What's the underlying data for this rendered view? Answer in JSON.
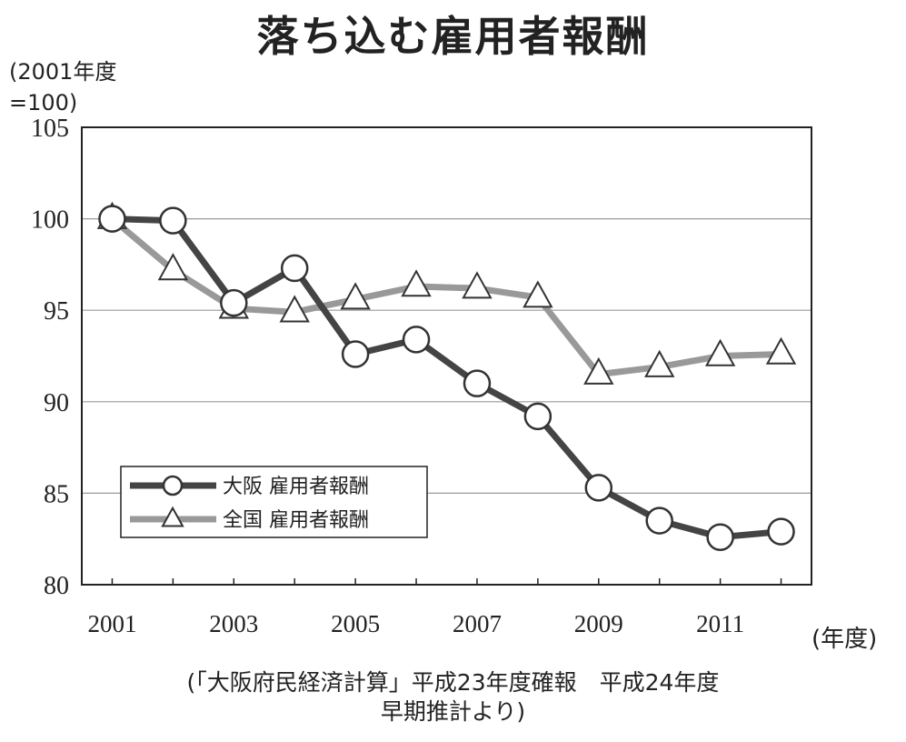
{
  "title": "落ち込む雇用者報酬",
  "chart_data": {
    "type": "line",
    "title": "落ち込む雇用者報酬",
    "ylabel": "(2001年度\n=100)",
    "xlabel": "(年度)",
    "ylim": [
      80,
      105
    ],
    "yticks": [
      80,
      85,
      90,
      95,
      100,
      105
    ],
    "x": [
      2001,
      2002,
      2003,
      2004,
      2005,
      2006,
      2007,
      2008,
      2009,
      2010,
      2011,
      2012
    ],
    "xticks": [
      2001,
      2003,
      2005,
      2007,
      2009,
      2011
    ],
    "grid": "horizontal",
    "legend_position": "lower-left",
    "series": [
      {
        "name": "大阪 雇用者報酬",
        "marker": "circle",
        "color": "#444444",
        "values": [
          100.0,
          99.9,
          95.4,
          97.3,
          92.6,
          93.4,
          91.0,
          89.2,
          85.3,
          83.5,
          82.6,
          82.9
        ]
      },
      {
        "name": "全国 雇用者報酬",
        "marker": "triangle",
        "color": "#999999",
        "values": [
          100.0,
          97.2,
          95.1,
          94.9,
          95.6,
          96.3,
          96.2,
          95.7,
          91.5,
          91.9,
          92.5,
          92.6
        ]
      }
    ]
  },
  "source_note": "(「大阪府民経済計算」平成23年度確報　平成24年度\n早期推計より)"
}
